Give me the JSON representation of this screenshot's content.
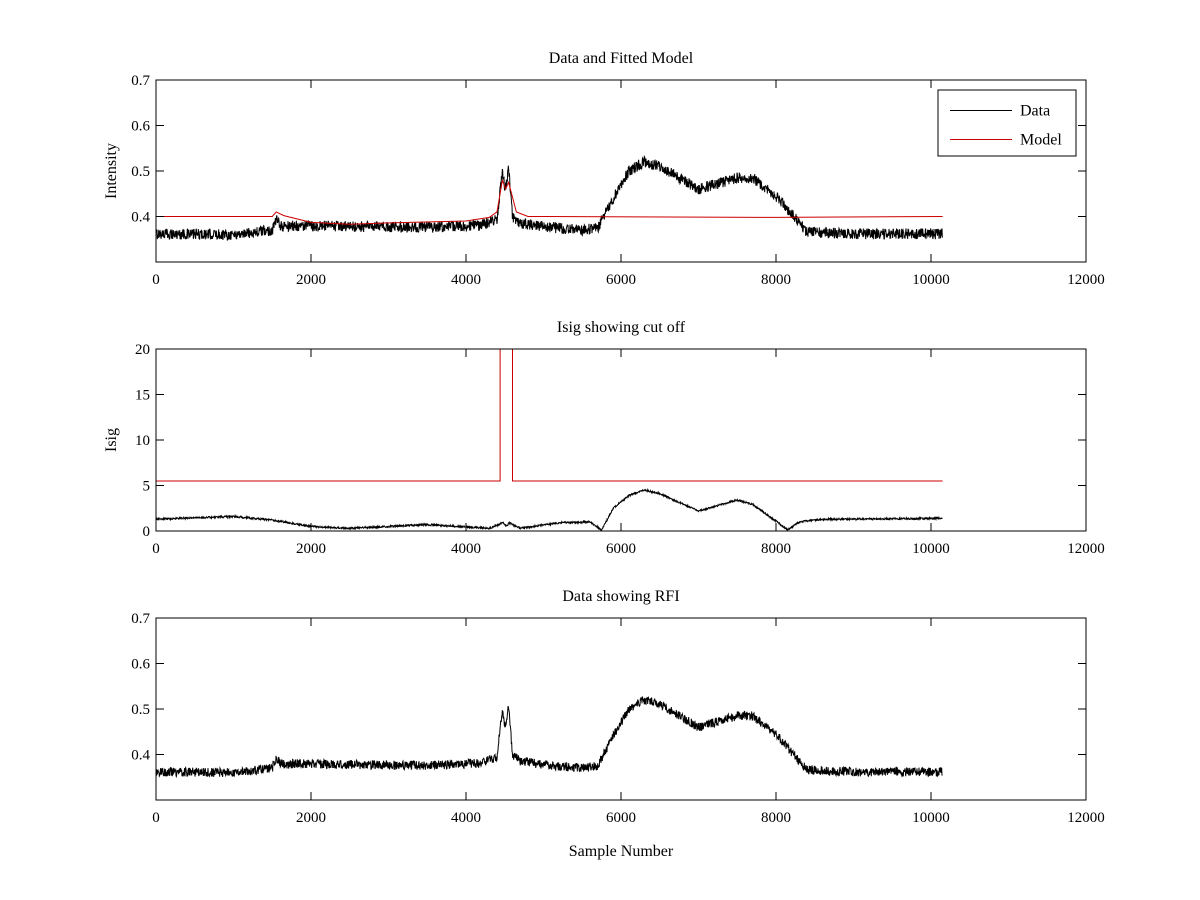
{
  "figure": {
    "background": "#ffffff"
  },
  "chart_data": [
    {
      "type": "line",
      "title": "Data and Fitted Model",
      "xlabel": "",
      "ylabel": "Intensity",
      "xlim": [
        0,
        12000
      ],
      "ylim": [
        0.3,
        0.7
      ],
      "xticks": [
        0,
        2000,
        4000,
        6000,
        8000,
        10000,
        12000
      ],
      "xtick_labels": [
        "0",
        "2000",
        "4000",
        "6000",
        "8000",
        "10000",
        "12000"
      ],
      "yticks": [
        0.4,
        0.5,
        0.6,
        0.7
      ],
      "ytick_labels": [
        "0.4",
        "0.5",
        "0.6",
        "0.7"
      ],
      "grid": false,
      "legend": {
        "placement": "top-right",
        "entries": [
          "Data",
          "Model"
        ]
      },
      "series": [
        {
          "name": "Data",
          "color": "#000000",
          "noise": 0.012,
          "x": [
            0,
            1000,
            1500,
            1550,
            1620,
            1800,
            2500,
            3500,
            4200,
            4400,
            4470,
            4500,
            4520,
            4550,
            4600,
            4700,
            5000,
            5500,
            5700,
            5900,
            6100,
            6300,
            6500,
            7000,
            7500,
            7700,
            8000,
            8400,
            9000,
            10150
          ],
          "y": [
            0.362,
            0.36,
            0.37,
            0.392,
            0.378,
            0.38,
            0.378,
            0.376,
            0.381,
            0.395,
            0.5,
            0.465,
            0.47,
            0.505,
            0.4,
            0.385,
            0.378,
            0.37,
            0.375,
            0.44,
            0.5,
            0.52,
            0.51,
            0.46,
            0.485,
            0.485,
            0.445,
            0.366,
            0.362,
            0.362
          ]
        },
        {
          "name": "Model",
          "color": "#cc0000",
          "noise": 0,
          "x": [
            0,
            1400,
            1500,
            1550,
            1650,
            2000,
            2500,
            3000,
            4000,
            4300,
            4400,
            4470,
            4510,
            4550,
            4650,
            4800,
            5000,
            8000,
            10150
          ],
          "y": [
            0.4,
            0.4,
            0.4,
            0.41,
            0.402,
            0.387,
            0.383,
            0.386,
            0.39,
            0.398,
            0.41,
            0.48,
            0.46,
            0.475,
            0.41,
            0.4,
            0.4,
            0.398,
            0.4
          ]
        }
      ]
    },
    {
      "type": "line",
      "title": "Isig showing cut off",
      "xlabel": "",
      "ylabel": "Isig",
      "xlim": [
        0,
        12000
      ],
      "ylim": [
        0,
        20
      ],
      "xticks": [
        0,
        2000,
        4000,
        6000,
        8000,
        10000,
        12000
      ],
      "xtick_labels": [
        "0",
        "2000",
        "4000",
        "6000",
        "8000",
        "10000",
        "12000"
      ],
      "yticks": [
        0,
        5,
        10,
        15,
        20
      ],
      "ytick_labels": [
        "0",
        "5",
        "10",
        "15",
        "20"
      ],
      "grid": false,
      "series": [
        {
          "name": "",
          "color": "#000000",
          "noise": 0.1,
          "x": [
            0,
            1000,
            1500,
            2000,
            2500,
            3500,
            4300,
            4480,
            4520,
            4560,
            4700,
            5200,
            5600,
            5750,
            5900,
            6100,
            6300,
            6500,
            7000,
            7500,
            7700,
            8000,
            8150,
            8300,
            8600,
            9000,
            10150
          ],
          "y": [
            1.3,
            1.6,
            1.2,
            0.5,
            0.3,
            0.7,
            0.3,
            0.9,
            0.5,
            0.9,
            0.3,
            0.9,
            1.0,
            0.1,
            2.5,
            3.9,
            4.5,
            4.1,
            2.2,
            3.4,
            2.9,
            1.1,
            0.1,
            1.0,
            1.3,
            1.3,
            1.4
          ]
        },
        {
          "name": "",
          "color": "#cc0000",
          "noise": 0,
          "x": [
            0,
            4440,
            4440,
            4600,
            4600,
            10150
          ],
          "y": [
            5.5,
            5.5,
            20,
            20,
            5.5,
            5.5
          ]
        }
      ]
    },
    {
      "type": "line",
      "title": "Data showing RFI",
      "xlabel": "Sample Number",
      "ylabel": "",
      "xlim": [
        0,
        12000
      ],
      "ylim": [
        0.3,
        0.7
      ],
      "xticks": [
        0,
        2000,
        4000,
        6000,
        8000,
        10000,
        12000
      ],
      "xtick_labels": [
        "0",
        "2000",
        "4000",
        "6000",
        "8000",
        "10000",
        "12000"
      ],
      "yticks": [
        0.4,
        0.5,
        0.6,
        0.7
      ],
      "ytick_labels": [
        "0.4",
        "0.5",
        "0.6",
        "0.7"
      ],
      "grid": false,
      "series": [
        {
          "name": "",
          "color": "#000000",
          "noise": 0.01,
          "x": [
            0,
            1000,
            1500,
            1550,
            1620,
            1800,
            2500,
            3500,
            4200,
            4400,
            4470,
            4500,
            4520,
            4550,
            4600,
            4700,
            5000,
            5500,
            5700,
            5900,
            6100,
            6300,
            6500,
            7000,
            7500,
            7700,
            8000,
            8400,
            9000,
            10150
          ],
          "y": [
            0.362,
            0.36,
            0.37,
            0.392,
            0.378,
            0.38,
            0.378,
            0.376,
            0.381,
            0.395,
            0.5,
            0.465,
            0.47,
            0.505,
            0.4,
            0.385,
            0.378,
            0.37,
            0.375,
            0.44,
            0.5,
            0.52,
            0.51,
            0.46,
            0.485,
            0.485,
            0.445,
            0.366,
            0.362,
            0.362
          ]
        }
      ]
    }
  ]
}
